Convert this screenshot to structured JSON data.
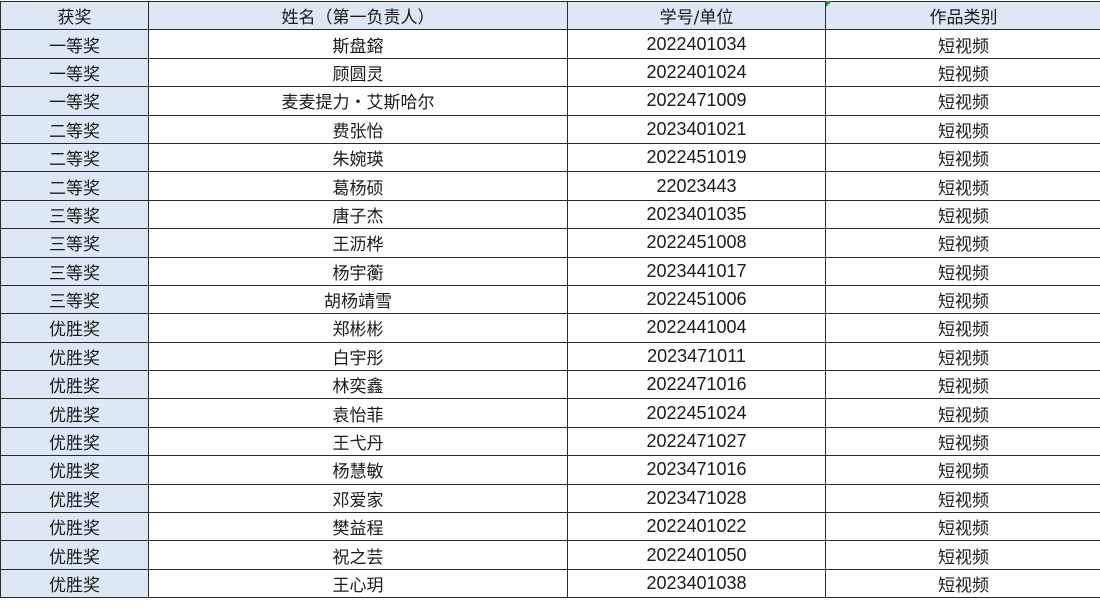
{
  "headers": {
    "award": "获奖",
    "name": "姓名（第一负责人）",
    "id": "学号/单位",
    "category": "作品类别"
  },
  "colors": {
    "header_bg": "#dde8f4",
    "border": "#2a2a2a",
    "comment_marker": "#1f9e3a"
  },
  "rows": [
    {
      "award": "一等奖",
      "name": "斯盘鎔",
      "id": "2022401034",
      "category": "短视频"
    },
    {
      "award": "一等奖",
      "name": "顾圆灵",
      "id": "2022401024",
      "category": "短视频"
    },
    {
      "award": "一等奖",
      "name": "麦麦提力・艾斯哈尔",
      "id": "2022471009",
      "category": "短视频"
    },
    {
      "award": "二等奖",
      "name": "费张怡",
      "id": "2023401021",
      "category": "短视频"
    },
    {
      "award": "二等奖",
      "name": "朱婉瑛",
      "id": "2022451019",
      "category": "短视频"
    },
    {
      "award": "二等奖",
      "name": "葛杨硕",
      "id": "22023443",
      "category": "短视频"
    },
    {
      "award": "三等奖",
      "name": "唐子杰",
      "id": "2023401035",
      "category": "短视频"
    },
    {
      "award": "三等奖",
      "name": "王沥桦",
      "id": "2022451008",
      "category": "短视频"
    },
    {
      "award": "三等奖",
      "name": "杨宇蘅",
      "id": "2023441017",
      "category": "短视频"
    },
    {
      "award": "三等奖",
      "name": "胡杨靖雪",
      "id": "2022451006",
      "category": "短视频"
    },
    {
      "award": "优胜奖",
      "name": "郑彬彬",
      "id": "2022441004",
      "category": "短视频"
    },
    {
      "award": "优胜奖",
      "name": "白宇彤",
      "id": "2023471011",
      "category": "短视频"
    },
    {
      "award": "优胜奖",
      "name": "林奕鑫",
      "id": "2022471016",
      "category": "短视频"
    },
    {
      "award": "优胜奖",
      "name": "袁怡菲",
      "id": "2022451024",
      "category": "短视频"
    },
    {
      "award": "优胜奖",
      "name": "王弋丹",
      "id": "2022471027",
      "category": "短视频"
    },
    {
      "award": "优胜奖",
      "name": "杨慧敏",
      "id": "2023471016",
      "category": "短视频"
    },
    {
      "award": "优胜奖",
      "name": "邓爱家",
      "id": "2023471028",
      "category": "短视频"
    },
    {
      "award": "优胜奖",
      "name": "樊益程",
      "id": "2022401022",
      "category": "短视频"
    },
    {
      "award": "优胜奖",
      "name": "祝之芸",
      "id": "2022401050",
      "category": "短视频"
    },
    {
      "award": "优胜奖",
      "name": "王心玥",
      "id": "2023401038",
      "category": "短视频"
    }
  ]
}
